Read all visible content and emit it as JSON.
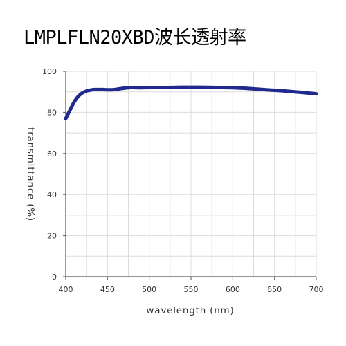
{
  "title": "LMPLFLN20XBD波长透射率",
  "chart_data": {
    "type": "line",
    "xlabel": "wavelength (nm)",
    "ylabel": "transmittance (%)",
    "xlim": [
      400,
      700
    ],
    "ylim": [
      0,
      100
    ],
    "xticks": [
      400,
      450,
      500,
      550,
      600,
      650,
      700
    ],
    "yticks": [
      0,
      20,
      40,
      60,
      80,
      100
    ],
    "grid": true,
    "series": [
      {
        "color": "#1f2a8c",
        "x": [
          400,
          405,
          410,
          415,
          420,
          425,
          430,
          435,
          440,
          445,
          450,
          455,
          460,
          465,
          470,
          475,
          480,
          490,
          500,
          520,
          540,
          560,
          580,
          600,
          620,
          640,
          660,
          680,
          700
        ],
        "y": [
          77,
          81,
          85,
          87.8,
          89.5,
          90.4,
          90.9,
          91.1,
          91.1,
          91.1,
          91.0,
          91.0,
          91.2,
          91.5,
          91.8,
          92.0,
          92.1,
          92.0,
          92.1,
          92.1,
          92.2,
          92.2,
          92.1,
          92.0,
          91.6,
          91.0,
          90.5,
          89.8,
          89.0
        ]
      }
    ]
  }
}
